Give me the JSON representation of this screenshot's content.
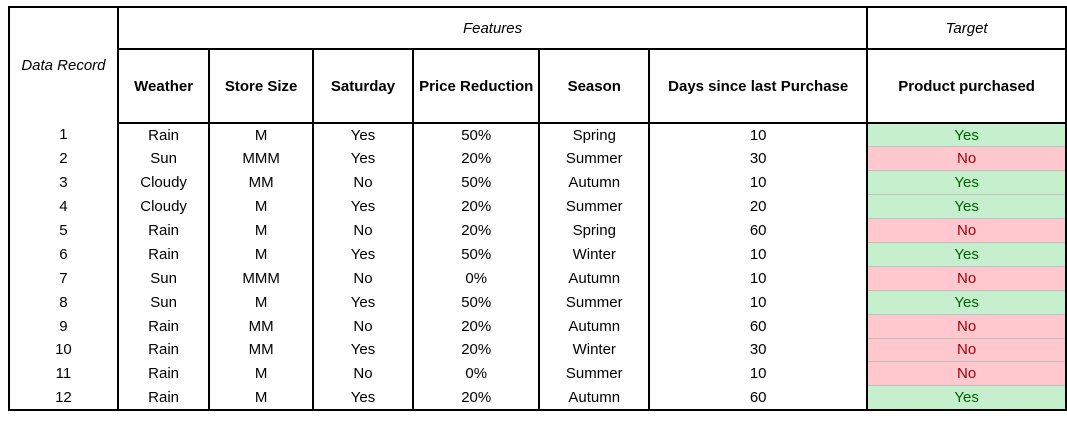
{
  "table": {
    "record_label": "Data Record",
    "features_label": "Features",
    "target_label": "Target",
    "columns": [
      {
        "key": "weather",
        "label": "Weather"
      },
      {
        "key": "store_size",
        "label": "Store Size"
      },
      {
        "key": "saturday",
        "label": "Saturday"
      },
      {
        "key": "price_reduction",
        "label": "Price Reduction"
      },
      {
        "key": "season",
        "label": "Season"
      },
      {
        "key": "days",
        "label": "Days since last Purchase"
      }
    ],
    "target_column": {
      "key": "purchased",
      "label": "Product purchased"
    },
    "rows": [
      {
        "id": "1",
        "weather": "Rain",
        "store_size": "M",
        "saturday": "Yes",
        "price_reduction": "50%",
        "season": "Spring",
        "days": "10",
        "purchased": "Yes"
      },
      {
        "id": "2",
        "weather": "Sun",
        "store_size": "MMM",
        "saturday": "Yes",
        "price_reduction": "20%",
        "season": "Summer",
        "days": "30",
        "purchased": "No"
      },
      {
        "id": "3",
        "weather": "Cloudy",
        "store_size": "MM",
        "saturday": "No",
        "price_reduction": "50%",
        "season": "Autumn",
        "days": "10",
        "purchased": "Yes"
      },
      {
        "id": "4",
        "weather": "Cloudy",
        "store_size": "M",
        "saturday": "Yes",
        "price_reduction": "20%",
        "season": "Summer",
        "days": "20",
        "purchased": "Yes"
      },
      {
        "id": "5",
        "weather": "Rain",
        "store_size": "M",
        "saturday": "No",
        "price_reduction": "20%",
        "season": "Spring",
        "days": "60",
        "purchased": "No"
      },
      {
        "id": "6",
        "weather": "Rain",
        "store_size": "M",
        "saturday": "Yes",
        "price_reduction": "50%",
        "season": "Winter",
        "days": "10",
        "purchased": "Yes"
      },
      {
        "id": "7",
        "weather": "Sun",
        "store_size": "MMM",
        "saturday": "No",
        "price_reduction": "0%",
        "season": "Autumn",
        "days": "10",
        "purchased": "No"
      },
      {
        "id": "8",
        "weather": "Sun",
        "store_size": "M",
        "saturday": "Yes",
        "price_reduction": "50%",
        "season": "Summer",
        "days": "10",
        "purchased": "Yes"
      },
      {
        "id": "9",
        "weather": "Rain",
        "store_size": "MM",
        "saturday": "No",
        "price_reduction": "20%",
        "season": "Autumn",
        "days": "60",
        "purchased": "No"
      },
      {
        "id": "10",
        "weather": "Rain",
        "store_size": "MM",
        "saturday": "Yes",
        "price_reduction": "20%",
        "season": "Winter",
        "days": "30",
        "purchased": "No"
      },
      {
        "id": "11",
        "weather": "Rain",
        "store_size": "M",
        "saturday": "No",
        "price_reduction": "0%",
        "season": "Summer",
        "days": "10",
        "purchased": "No"
      },
      {
        "id": "12",
        "weather": "Rain",
        "store_size": "M",
        "saturday": "Yes",
        "price_reduction": "20%",
        "season": "Autumn",
        "days": "60",
        "purchased": "Yes"
      }
    ]
  },
  "colors": {
    "yes_fill": "#c6efce",
    "yes_text": "#006100",
    "no_fill": "#ffc7ce",
    "no_text": "#9c0006",
    "border": "#000000"
  }
}
